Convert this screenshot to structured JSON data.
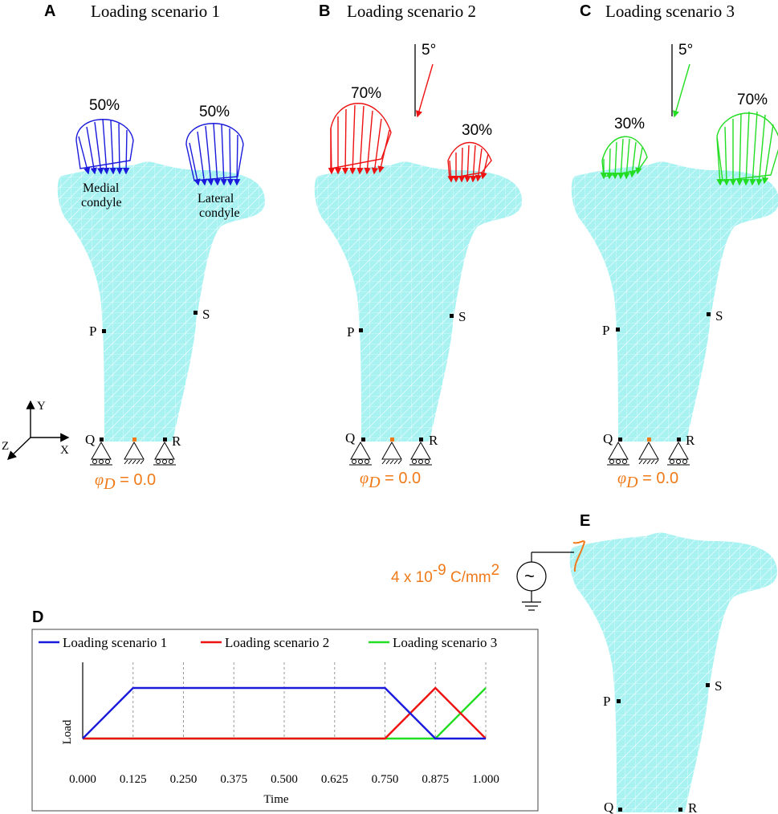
{
  "panels": {
    "A": {
      "letter": "A",
      "title": "Loading scenario 1",
      "left_pct": "50%",
      "right_pct": "50%",
      "medial_1": "Medial",
      "medial_2": "condyle",
      "lateral_1": "Lateral",
      "lateral_2": "condyle"
    },
    "B": {
      "letter": "B",
      "title": "Loading scenario 2",
      "left_pct": "70%",
      "right_pct": "30%",
      "angle": "5°"
    },
    "C": {
      "letter": "C",
      "title": "Loading scenario 3",
      "left_pct": "30%",
      "right_pct": "70%",
      "angle": "5°"
    },
    "D": {
      "letter": "D"
    },
    "E": {
      "letter": "E",
      "charge_base": "4 x 10",
      "charge_exp": "-9",
      "charge_unit": " C/mm",
      "charge_unit_exp": "2",
      "source_symbol": "~"
    }
  },
  "points": {
    "P": "P",
    "Q": "Q",
    "R": "R",
    "S": "S"
  },
  "axes3d": {
    "x": "X",
    "y": "Y",
    "z": "Z"
  },
  "boundary": {
    "phi_symbol": "φ",
    "phi_sub": "D",
    "phi_value": " = 0.0"
  },
  "colors": {
    "scenario1": "#1a1adc",
    "scenario2": "#ee1111",
    "scenario3": "#22dd22",
    "bone": "#a8f2f2",
    "orange": "#f07a18"
  },
  "chart_data": {
    "type": "line",
    "xlabel": "Time",
    "ylabel": "Load",
    "xlim": [
      0,
      1
    ],
    "ylim": [
      0,
      1
    ],
    "x_ticks": [
      "0.000",
      "0.125",
      "0.250",
      "0.375",
      "0.500",
      "0.625",
      "0.750",
      "0.875",
      "1.000"
    ],
    "grid": "vertical dashed",
    "legend": "top",
    "series": [
      {
        "name": "Loading scenario 1",
        "color": "#1a1adc",
        "x": [
          0,
          0.125,
          0.75,
          0.875,
          1.0
        ],
        "y": [
          0,
          1,
          1,
          0,
          0
        ]
      },
      {
        "name": "Loading scenario 2",
        "color": "#ee1111",
        "x": [
          0,
          0.75,
          0.875,
          1.0
        ],
        "y": [
          0,
          0,
          1,
          0
        ]
      },
      {
        "name": "Loading scenario 3",
        "color": "#22dd22",
        "x": [
          0,
          0.875,
          1.0
        ],
        "y": [
          0,
          0,
          1
        ]
      }
    ]
  }
}
